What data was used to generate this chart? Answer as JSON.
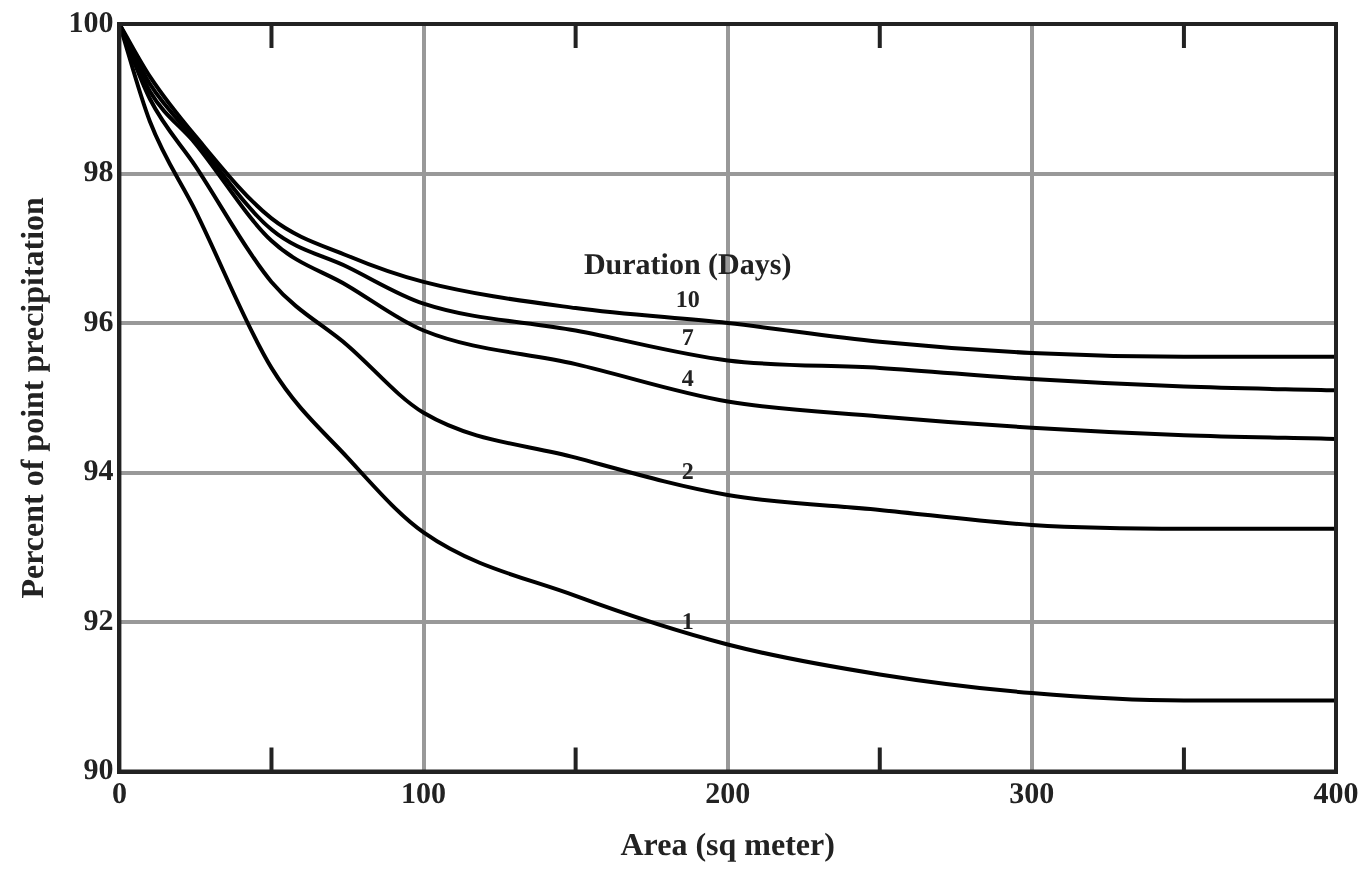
{
  "chart_data": {
    "type": "line",
    "xlabel": "Area (sq meter)",
    "ylabel": "Percent of point precipitation",
    "legend_title": "Duration (Days)",
    "xlim": [
      0,
      400
    ],
    "ylim": [
      90,
      100
    ],
    "xticks": [
      0,
      {
        "value": 50,
        "label": null
      },
      100,
      {
        "value": 150,
        "label": null
      },
      200,
      {
        "value": 250,
        "label": null
      },
      300,
      {
        "value": 350,
        "label": null
      },
      400
    ],
    "yticks": [
      90,
      92,
      94,
      96,
      98,
      100
    ],
    "grid": true,
    "legend": false,
    "marker": "none",
    "line_style": "solid",
    "x": [
      0,
      10,
      25,
      50,
      75,
      100,
      150,
      200,
      250,
      300,
      350,
      400
    ],
    "series": [
      {
        "name": "10",
        "color": "#000000",
        "values": [
          100,
          99.3,
          98.5,
          97.4,
          96.9,
          96.55,
          96.2,
          96.0,
          95.75,
          95.6,
          95.55,
          95.55
        ]
      },
      {
        "name": "7",
        "color": "#000000",
        "values": [
          100,
          99.2,
          98.45,
          97.25,
          96.75,
          96.26,
          95.9,
          95.5,
          95.4,
          95.25,
          95.15,
          95.1
        ]
      },
      {
        "name": "4",
        "color": "#000000",
        "values": [
          100,
          99.1,
          98.4,
          97.1,
          96.5,
          95.9,
          95.45,
          94.95,
          94.75,
          94.6,
          94.5,
          94.45
        ]
      },
      {
        "name": "2",
        "color": "#000000",
        "values": [
          100,
          99.0,
          98.1,
          96.55,
          95.7,
          94.8,
          94.2,
          93.7,
          93.5,
          93.3,
          93.25,
          93.25
        ]
      },
      {
        "name": "1",
        "color": "#000000",
        "values": [
          100,
          98.7,
          97.5,
          95.4,
          94.2,
          93.2,
          92.35,
          91.7,
          91.3,
          91.05,
          90.95,
          90.95
        ]
      }
    ]
  }
}
